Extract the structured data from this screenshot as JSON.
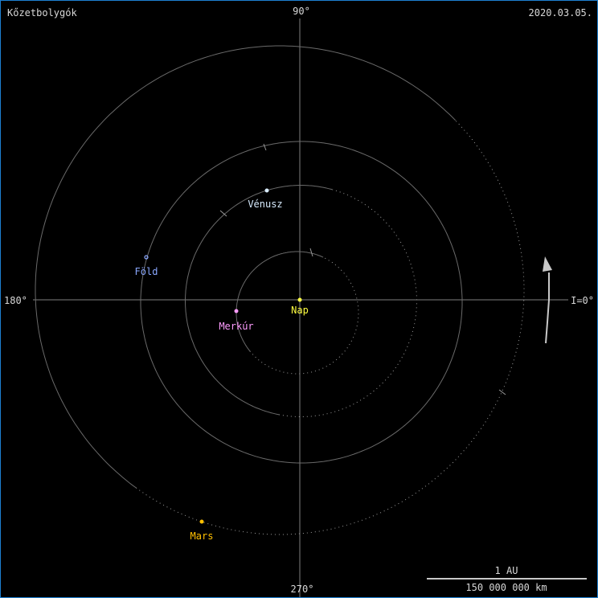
{
  "header": {
    "title": "Kőzetbolygók",
    "date": "2020.03.05."
  },
  "axes": {
    "top": "90°",
    "bottom": "270°",
    "left": "180°",
    "right": "I=0°"
  },
  "bodies": [
    {
      "name": "Nap",
      "color": "#ffff40"
    },
    {
      "name": "Merkúr",
      "color": "#ff9cff"
    },
    {
      "name": "Vénusz",
      "color": "#d8ecff"
    },
    {
      "name": "Föld",
      "color": "#8aa8ff"
    },
    {
      "name": "Mars",
      "color": "#ffc000"
    }
  ],
  "scale": {
    "top_label": "1 AU",
    "bottom_label": "150 000 000 km"
  },
  "colors": {
    "orbit": "#6a6a6a",
    "axis": "#8a8a8a",
    "text": "#d8d8d8",
    "arrow": "#c8c8c8",
    "border": "#1e7fd0"
  }
}
